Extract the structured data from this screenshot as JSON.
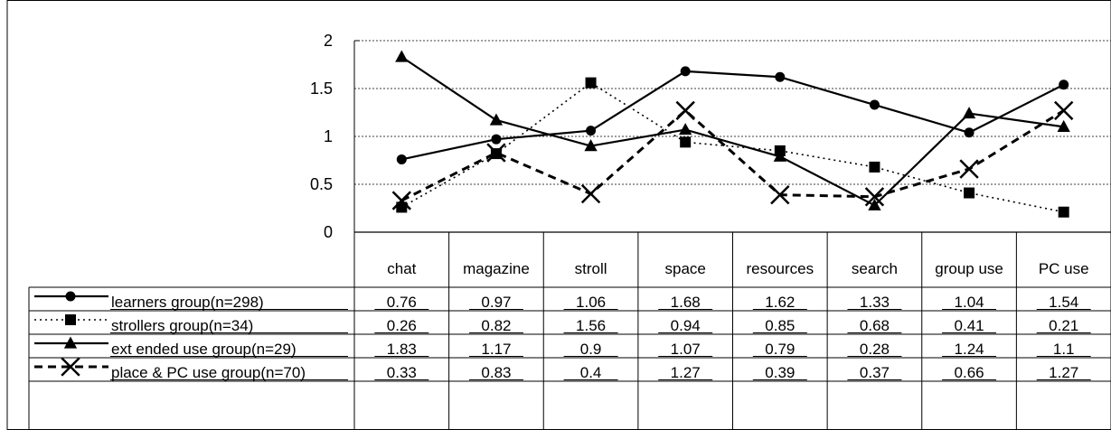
{
  "chart_data": {
    "type": "line",
    "title": "",
    "xlabel": "",
    "ylabel": "",
    "ylim": [
      0,
      2
    ],
    "y_ticks": [
      "0",
      "0.5",
      "1",
      "1.5",
      "2"
    ],
    "y_tick_values": [
      0,
      0.5,
      1,
      1.5,
      2
    ],
    "grid": "horizontal dotted",
    "legend_placement": "data table rows below chart",
    "categories": [
      "chat",
      "magazine",
      "stroll",
      "space",
      "resources",
      "search",
      "group use",
      "PC use"
    ],
    "series": [
      {
        "name": "learners group(n=298)",
        "marker": "circle",
        "line": "solid",
        "values": [
          0.76,
          0.97,
          1.06,
          1.68,
          1.62,
          1.33,
          1.04,
          1.54
        ],
        "labels": [
          "0.76",
          "0.97",
          "1.06",
          "1.68",
          "1.62",
          "1.33",
          "1.04",
          "1.54"
        ]
      },
      {
        "name": "strollers group(n=34)",
        "marker": "square",
        "line": "dotted",
        "values": [
          0.26,
          0.82,
          1.56,
          0.94,
          0.85,
          0.68,
          0.41,
          0.21
        ],
        "labels": [
          "0.26",
          "0.82",
          "1.56",
          "0.94",
          "0.85",
          "0.68",
          "0.41",
          "0.21"
        ]
      },
      {
        "name": "ext ended use group(n=29)",
        "marker": "triangle",
        "line": "solid",
        "values": [
          1.83,
          1.17,
          0.9,
          1.07,
          0.79,
          0.28,
          1.24,
          1.1
        ],
        "labels": [
          "1.83",
          "1.17",
          "0.9",
          "1.07",
          "0.79",
          "0.28",
          "1.24",
          "1.1"
        ]
      },
      {
        "name": "place & PC use group(n=70)",
        "marker": "x",
        "line": "dashed",
        "values": [
          0.33,
          0.83,
          0.4,
          1.27,
          0.39,
          0.37,
          0.66,
          1.27
        ],
        "labels": [
          "0.33",
          "0.83",
          "0.4",
          "1.27",
          "0.39",
          "0.37",
          "0.66",
          "1.27"
        ]
      }
    ]
  }
}
